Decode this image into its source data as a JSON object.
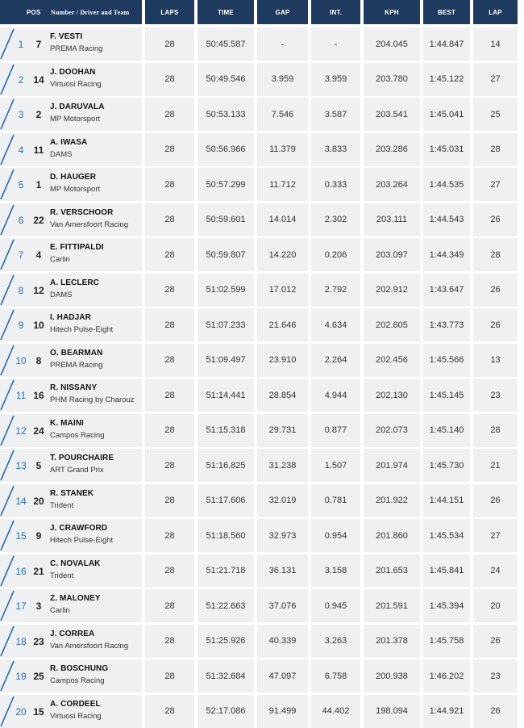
{
  "headers": {
    "pos": "POS",
    "name": "Number / Driver and Team",
    "laps": "LAPS",
    "time": "TIME",
    "gap": "GAP",
    "int": "INT.",
    "kph": "KPH",
    "best": "BEST",
    "lap": "LAP"
  },
  "colors": {
    "header_bg": "#1e3a5f",
    "accent": "#2a6db0",
    "row_bg": "#eef0f2"
  },
  "rows": [
    {
      "pos": "1",
      "num": "7",
      "driver": "F. VESTI",
      "team": "PREMA Racing",
      "laps": "28",
      "time": "50:45.587",
      "gap": "-",
      "int": "-",
      "kph": "204.045",
      "best": "1:44.847",
      "lap": "14"
    },
    {
      "pos": "2",
      "num": "14",
      "driver": "J. DOOHAN",
      "team": "Virtuosi Racing",
      "laps": "28",
      "time": "50:49.546",
      "gap": "3.959",
      "int": "3.959",
      "kph": "203.780",
      "best": "1:45.122",
      "lap": "27"
    },
    {
      "pos": "3",
      "num": "2",
      "driver": "J. DARUVALA",
      "team": "MP Motorsport",
      "laps": "28",
      "time": "50:53.133",
      "gap": "7.546",
      "int": "3.587",
      "kph": "203.541",
      "best": "1:45.041",
      "lap": "25"
    },
    {
      "pos": "4",
      "num": "11",
      "driver": "A. IWASA",
      "team": "DAMS",
      "laps": "28",
      "time": "50:56.966",
      "gap": "11.379",
      "int": "3.833",
      "kph": "203.286",
      "best": "1:45.031",
      "lap": "28"
    },
    {
      "pos": "5",
      "num": "1",
      "driver": "D. HAUGER",
      "team": "MP Motorsport",
      "laps": "28",
      "time": "50:57.299",
      "gap": "11.712",
      "int": "0.333",
      "kph": "203.264",
      "best": "1:44.535",
      "lap": "27"
    },
    {
      "pos": "6",
      "num": "22",
      "driver": "R. VERSCHOOR",
      "team": "Van Amersfoort Racing",
      "laps": "28",
      "time": "50:59.601",
      "gap": "14.014",
      "int": "2.302",
      "kph": "203.111",
      "best": "1:44.543",
      "lap": "26"
    },
    {
      "pos": "7",
      "num": "4",
      "driver": "E. FITTIPALDI",
      "team": "Carlin",
      "laps": "28",
      "time": "50:59.807",
      "gap": "14.220",
      "int": "0.206",
      "kph": "203.097",
      "best": "1:44.349",
      "lap": "28"
    },
    {
      "pos": "8",
      "num": "12",
      "driver": "A. LECLERC",
      "team": "DAMS",
      "laps": "28",
      "time": "51:02.599",
      "gap": "17.012",
      "int": "2.792",
      "kph": "202.912",
      "best": "1:43.647",
      "lap": "26"
    },
    {
      "pos": "9",
      "num": "10",
      "driver": "I. HADJAR",
      "team": "Hitech Pulse-Eight",
      "laps": "28",
      "time": "51:07.233",
      "gap": "21.646",
      "int": "4.634",
      "kph": "202.605",
      "best": "1:43.773",
      "lap": "26"
    },
    {
      "pos": "10",
      "num": "8",
      "driver": "O. BEARMAN",
      "team": "PREMA Racing",
      "laps": "28",
      "time": "51:09.497",
      "gap": "23.910",
      "int": "2.264",
      "kph": "202.456",
      "best": "1:45.566",
      "lap": "13"
    },
    {
      "pos": "11",
      "num": "16",
      "driver": "R. NISSANY",
      "team": "PHM Racing by Charouz",
      "laps": "28",
      "time": "51:14.441",
      "gap": "28.854",
      "int": "4.944",
      "kph": "202.130",
      "best": "1:45.145",
      "lap": "23"
    },
    {
      "pos": "12",
      "num": "24",
      "driver": "K. MAINI",
      "team": "Campos Racing",
      "laps": "28",
      "time": "51:15.318",
      "gap": "29.731",
      "int": "0.877",
      "kph": "202.073",
      "best": "1:45.140",
      "lap": "28"
    },
    {
      "pos": "13",
      "num": "5",
      "driver": "T. POURCHAIRE",
      "team": "ART Grand Prix",
      "laps": "28",
      "time": "51:16.825",
      "gap": "31.238",
      "int": "1.507",
      "kph": "201.974",
      "best": "1:45.730",
      "lap": "21"
    },
    {
      "pos": "14",
      "num": "20",
      "driver": "R. STANEK",
      "team": "Trident",
      "laps": "28",
      "time": "51:17.606",
      "gap": "32.019",
      "int": "0.781",
      "kph": "201.922",
      "best": "1:44.151",
      "lap": "26"
    },
    {
      "pos": "15",
      "num": "9",
      "driver": "J. CRAWFORD",
      "team": "Hitech Pulse-Eight",
      "laps": "28",
      "time": "51:18.560",
      "gap": "32.973",
      "int": "0.954",
      "kph": "201.860",
      "best": "1:45.534",
      "lap": "27"
    },
    {
      "pos": "16",
      "num": "21",
      "driver": "C. NOVALAK",
      "team": "Trident",
      "laps": "28",
      "time": "51:21.718",
      "gap": "36.131",
      "int": "3.158",
      "kph": "201.653",
      "best": "1:45.841",
      "lap": "24"
    },
    {
      "pos": "17",
      "num": "3",
      "driver": "Z. MALONEY",
      "team": "Carlin",
      "laps": "28",
      "time": "51:22.663",
      "gap": "37.076",
      "int": "0.945",
      "kph": "201.591",
      "best": "1:45.394",
      "lap": "20"
    },
    {
      "pos": "18",
      "num": "23",
      "driver": "J. CORREA",
      "team": "Van Amersfoort Racing",
      "laps": "28",
      "time": "51:25.926",
      "gap": "40.339",
      "int": "3.263",
      "kph": "201.378",
      "best": "1:45.758",
      "lap": "26"
    },
    {
      "pos": "19",
      "num": "25",
      "driver": "R. BOSCHUNG",
      "team": "Campos Racing",
      "laps": "28",
      "time": "51:32.684",
      "gap": "47.097",
      "int": "6.758",
      "kph": "200.938",
      "best": "1:46.202",
      "lap": "23"
    },
    {
      "pos": "20",
      "num": "15",
      "driver": "A. CORDEEL",
      "team": "Virtuosi Racing",
      "laps": "28",
      "time": "52:17.086",
      "gap": "91.499",
      "int": "44.402",
      "kph": "198.094",
      "best": "1:44.921",
      "lap": "26"
    }
  ]
}
